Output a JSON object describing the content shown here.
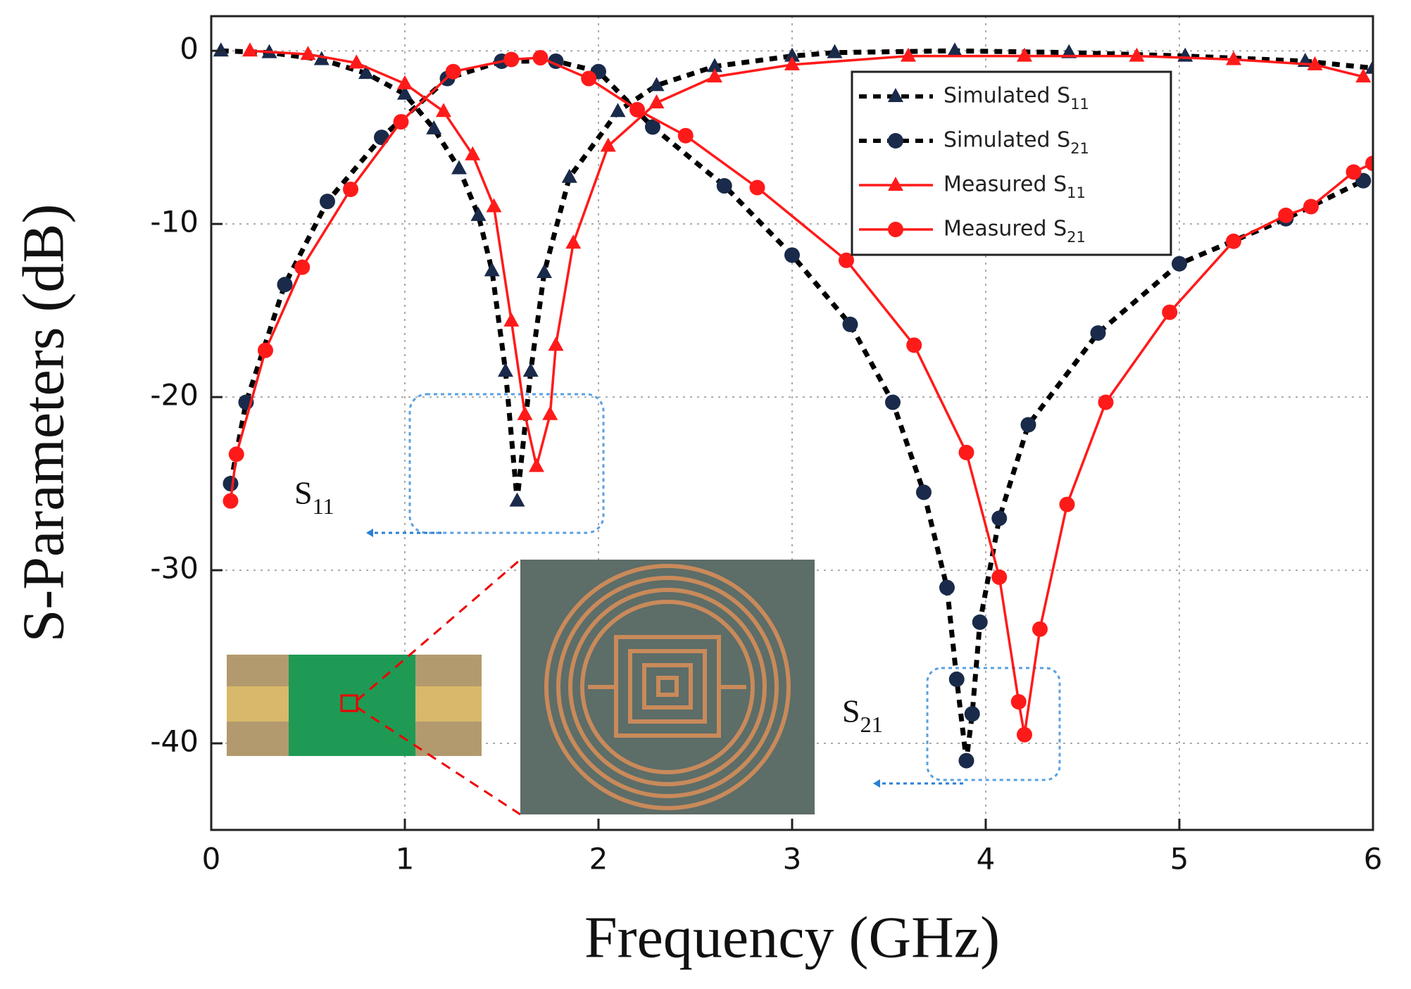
{
  "chart_data": {
    "type": "line",
    "xlabel": "Frequency (GHz)",
    "ylabel": "S-Parameters (dB)",
    "xlim": [
      0,
      6
    ],
    "xticks": [
      0,
      1,
      2,
      3,
      4,
      5,
      6
    ],
    "ylim": [
      -45,
      2
    ],
    "yticks": [
      0,
      -10,
      -20,
      -30,
      -40
    ],
    "grid": true,
    "legend": "upper right",
    "annotations": [
      "S11",
      "S21"
    ],
    "series": [
      {
        "name": "Simulated S11",
        "color": "#000000",
        "dash": true,
        "marker": "triangle",
        "x": [
          0.05,
          0.3,
          0.57,
          0.8,
          1.0,
          1.15,
          1.28,
          1.38,
          1.45,
          1.52,
          1.58,
          1.65,
          1.72,
          1.85,
          2.1,
          2.3,
          2.6,
          3.0,
          3.22,
          3.84,
          4.43,
          5.03,
          5.65,
          6.0
        ],
        "values": [
          0,
          -0.1,
          -0.5,
          -1.3,
          -2.5,
          -4.5,
          -6.8,
          -9.5,
          -12.7,
          -18.5,
          -26,
          -18.5,
          -12.8,
          -7.3,
          -3.5,
          -2,
          -0.9,
          -0.3,
          -0.1,
          0,
          -0.1,
          -0.3,
          -0.6,
          -1.0
        ]
      },
      {
        "name": "Simulated S21",
        "color": "#000000",
        "dash": true,
        "marker": "circle",
        "x": [
          0.1,
          0.18,
          0.38,
          0.6,
          0.88,
          1.22,
          1.5,
          1.78,
          2.0,
          2.28,
          2.65,
          3.0,
          3.3,
          3.52,
          3.68,
          3.8,
          3.85,
          3.9,
          3.93,
          3.97,
          4.07,
          4.22,
          4.58,
          5.0,
          5.55,
          5.95
        ],
        "values": [
          -25,
          -20.3,
          -13.5,
          -8.7,
          -5,
          -1.6,
          -0.6,
          -0.6,
          -1.2,
          -4.4,
          -7.8,
          -11.8,
          -15.8,
          -20.3,
          -25.5,
          -31,
          -36.3,
          -41,
          -38.3,
          -33,
          -27,
          -21.6,
          -16.3,
          -12.3,
          -9.7,
          -7.5
        ]
      },
      {
        "name": "Measured S11",
        "color": "#ff1a1a",
        "dash": false,
        "marker": "triangle",
        "x": [
          0.2,
          0.5,
          0.75,
          1.0,
          1.2,
          1.35,
          1.46,
          1.55,
          1.62,
          1.68,
          1.75,
          1.78,
          1.87,
          2.05,
          2.3,
          2.6,
          3.0,
          3.6,
          4.2,
          4.78,
          5.28,
          5.7,
          5.95
        ],
        "values": [
          0,
          -0.2,
          -0.7,
          -1.9,
          -3.5,
          -6,
          -9,
          -15.6,
          -21,
          -24,
          -21,
          -17,
          -11.1,
          -5.5,
          -3,
          -1.5,
          -0.8,
          -0.3,
          -0.3,
          -0.3,
          -0.5,
          -0.8,
          -1.5
        ]
      },
      {
        "name": "Measured S21",
        "color": "#ff1a1a",
        "dash": false,
        "marker": "circle",
        "x": [
          0.1,
          0.13,
          0.28,
          0.47,
          0.72,
          0.98,
          1.25,
          1.55,
          1.7,
          1.95,
          2.2,
          2.45,
          2.82,
          3.28,
          3.63,
          3.9,
          4.07,
          4.17,
          4.2,
          4.28,
          4.42,
          4.62,
          4.95,
          5.28,
          5.55,
          5.68,
          5.9,
          6.0
        ],
        "values": [
          -26,
          -23.3,
          -17.3,
          -12.5,
          -8,
          -4.1,
          -1.2,
          -0.5,
          -0.4,
          -1.6,
          -3.4,
          -4.9,
          -7.9,
          -12.1,
          -17,
          -23.2,
          -30.4,
          -37.6,
          -39.5,
          -33.4,
          -26.2,
          -20.3,
          -15.1,
          -11,
          -9.5,
          -9,
          -7,
          -6.5
        ]
      }
    ]
  }
}
